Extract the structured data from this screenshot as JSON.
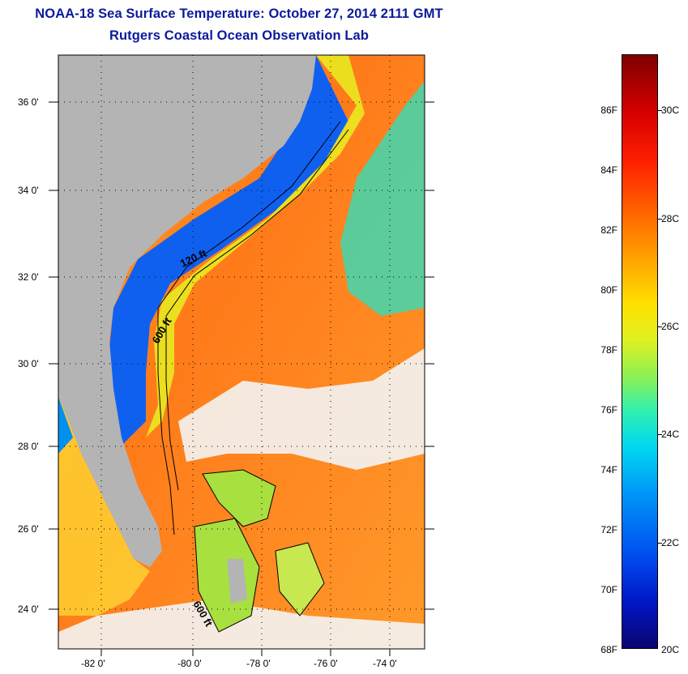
{
  "header": {
    "title": "NOAA-18 Sea Surface Temperature:  October 27, 2014 2111 GMT",
    "subtitle": "Rutgers Coastal Ocean Observation Lab"
  },
  "map": {
    "lat_labels": [
      "36 0'",
      "34 0'",
      "32 0'",
      "30 0'",
      "28 0'",
      "26 0'",
      "24 0'"
    ],
    "lon_labels": [
      "-82 0'",
      "-80 0'",
      "-78 0'",
      "-76 0'",
      "-74 0'"
    ],
    "contour_labels": [
      "120 ft",
      "600 ft",
      "600 ft"
    ],
    "colors": {
      "land": "#b4b4b4",
      "ocean_warm": "#ff8c1e",
      "shelf_cool": "#0050f0"
    }
  },
  "colorbar": {
    "fahrenheit": [
      "86F",
      "84F",
      "82F",
      "80F",
      "78F",
      "76F",
      "74F",
      "72F",
      "70F",
      "68F"
    ],
    "celsius": [
      "30C",
      "28C",
      "26C",
      "24C",
      "22C",
      "20C"
    ]
  }
}
